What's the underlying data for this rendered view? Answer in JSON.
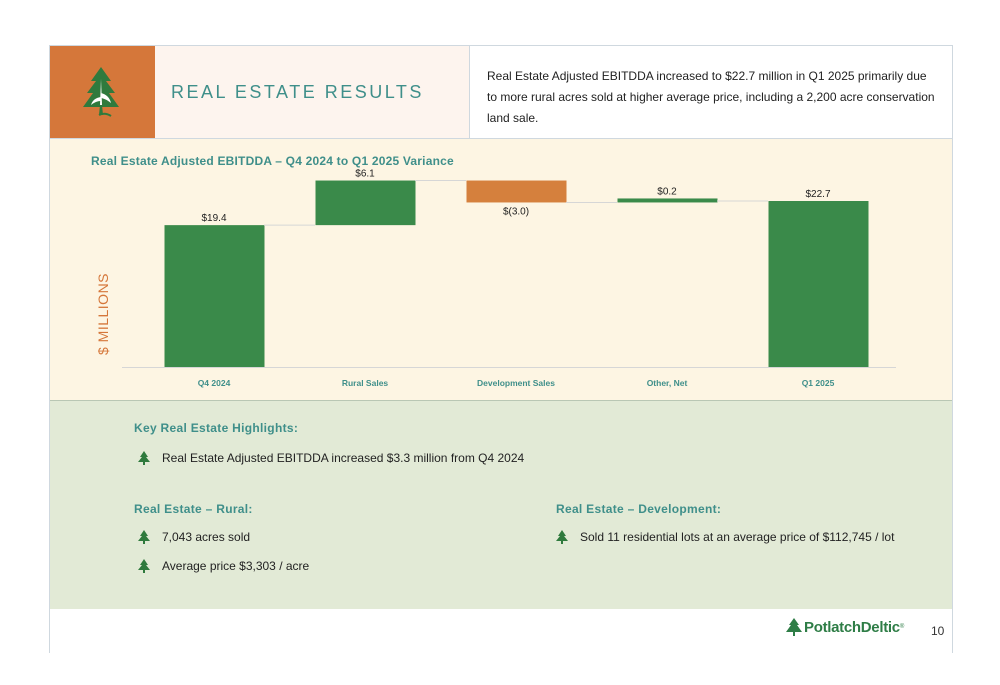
{
  "header": {
    "title": "REAL ESTATE RESULTS",
    "summary": "Real Estate Adjusted EBITDDA increased to $22.7 million in Q1 2025 primarily due to more rural acres sold at higher average price, including a 2,200 acre conservation land sale."
  },
  "chart_data": {
    "type": "bar",
    "subtype": "waterfall",
    "title": "Real Estate Adjusted EBITDDA – Q4 2024 to Q1 2025 Variance",
    "ylabel": "$ MILLIONS",
    "xlabel": "",
    "categories": [
      "Q4 2024",
      "Rural Sales",
      "Development Sales",
      "Other, Net",
      "Q1 2025"
    ],
    "values": [
      19.4,
      6.1,
      -3.0,
      0.2,
      22.7
    ],
    "kinds": [
      "total",
      "delta",
      "delta",
      "delta",
      "total"
    ],
    "data_labels": [
      "$19.4",
      "$6.1",
      "$(3.0)",
      "$0.2",
      "$22.7"
    ],
    "ylim": [
      0,
      24
    ],
    "grid": false,
    "colors": {
      "positive": "#3a8a4a",
      "negative": "#d5803d",
      "total": "#3a8a4a",
      "connector": "#d6d6d6"
    }
  },
  "highlights": {
    "heading": "Key Real Estate Highlights:",
    "main_item": "Real Estate Adjusted EBITDDA increased $3.3 million from Q4 2024",
    "rural": {
      "heading": "Real Estate – Rural:",
      "items": [
        "7,043 acres sold",
        "Average price $3,303 / acre"
      ]
    },
    "development": {
      "heading": "Real Estate – Development:",
      "items": [
        "Sold 11 residential lots at an average price of $112,745 / lot"
      ]
    }
  },
  "footer": {
    "brand": "PotlatchDeltic",
    "page_number": "10"
  },
  "icons": {
    "logo": "tree-logo-icon",
    "bullet": "tree-bullet-icon"
  },
  "colors": {
    "accent_orange": "#d5773a",
    "accent_teal": "#3f8f8a",
    "brand_green": "#2e7d46"
  }
}
